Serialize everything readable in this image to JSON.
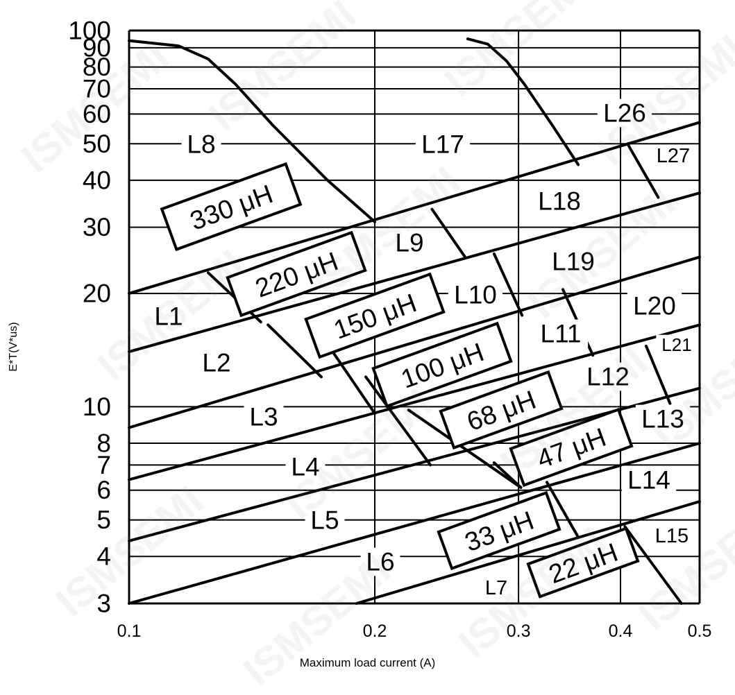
{
  "chart_data": {
    "type": "line",
    "title": "",
    "xlabel": "Maximum load current (A)",
    "ylabel": "E*T(V*us)",
    "x_scale": "log",
    "y_scale": "log",
    "xlim": [
      0.1,
      0.5
    ],
    "ylim": [
      3,
      100
    ],
    "x_ticks": [
      0.1,
      0.2,
      0.3,
      0.4,
      0.5
    ],
    "x_tick_labels": [
      "0.1",
      "0.2",
      "0.3",
      "0.4",
      "0.5"
    ],
    "y_ticks": [
      3,
      4,
      5,
      6,
      7,
      8,
      10,
      20,
      30,
      40,
      50,
      60,
      70,
      80,
      90,
      100
    ],
    "y_tick_labels": [
      "3",
      "4",
      "5",
      "6",
      "7",
      "8",
      "10",
      "20",
      "30",
      "40",
      "50",
      "60",
      "70",
      "80",
      "90",
      "100"
    ],
    "grid": true,
    "inductance_lines": [
      {
        "points": [
          [
            0.1,
            20
          ],
          [
            0.5,
            57
          ]
        ]
      },
      {
        "points": [
          [
            0.1,
            14
          ],
          [
            0.5,
            37
          ]
        ]
      },
      {
        "points": [
          [
            0.1,
            8.8
          ],
          [
            0.5,
            25
          ]
        ]
      },
      {
        "points": [
          [
            0.1,
            6.4
          ],
          [
            0.5,
            16.5
          ]
        ]
      },
      {
        "points": [
          [
            0.1,
            4.4
          ],
          [
            0.5,
            11.2
          ]
        ]
      },
      {
        "points": [
          [
            0.1,
            3.0
          ],
          [
            0.5,
            8.0
          ]
        ]
      },
      {
        "points": [
          [
            0.19,
            3.0
          ],
          [
            0.5,
            5.6
          ]
        ]
      }
    ],
    "boundary_curves": [
      {
        "points": [
          [
            0.1,
            94
          ],
          [
            0.115,
            91
          ],
          [
            0.125,
            84
          ],
          [
            0.135,
            72
          ],
          [
            0.15,
            56
          ],
          [
            0.175,
            40
          ],
          [
            0.2,
            31
          ]
        ]
      },
      {
        "points": [
          [
            0.26,
            95
          ],
          [
            0.275,
            92
          ],
          [
            0.29,
            83
          ],
          [
            0.305,
            72
          ],
          [
            0.33,
            56
          ],
          [
            0.355,
            44
          ]
        ]
      },
      {
        "points": [
          [
            0.408,
            50
          ],
          [
            0.445,
            36
          ]
        ]
      },
      {
        "points": [
          [
            0.235,
            33.5
          ],
          [
            0.258,
            25
          ]
        ]
      },
      {
        "points": [
          [
            0.28,
            25.5
          ],
          [
            0.303,
            17.5
          ]
        ]
      },
      {
        "points": [
          [
            0.34,
            20.5
          ],
          [
            0.37,
            13.7
          ]
        ]
      },
      {
        "points": [
          [
            0.43,
            14.5
          ],
          [
            0.46,
            10.2
          ]
        ]
      },
      {
        "points": [
          [
            0.125,
            22.7
          ],
          [
            0.145,
            16.8
          ]
        ]
      },
      {
        "points": [
          [
            0.148,
            16.5
          ],
          [
            0.172,
            12
          ]
        ]
      },
      {
        "points": [
          [
            0.172,
            15.5
          ],
          [
            0.2,
            9.6
          ]
        ]
      },
      {
        "points": [
          [
            0.195,
            12
          ],
          [
            0.234,
            7
          ]
        ]
      },
      {
        "points": [
          [
            0.22,
            9.8
          ],
          [
            0.302,
            6.1
          ]
        ]
      },
      {
        "points": [
          [
            0.28,
            7.1
          ],
          [
            0.302,
            6.1
          ]
        ]
      },
      {
        "points": [
          [
            0.325,
            6.3
          ],
          [
            0.355,
            4.5
          ]
        ]
      },
      {
        "points": [
          [
            0.405,
            4.8
          ],
          [
            0.475,
            3.0
          ]
        ]
      }
    ],
    "inductance_labels": [
      "330 μH",
      "220 μH",
      "150 μH",
      "100 μH",
      "68 μH",
      "47 μH",
      "33 μH",
      "22 μH"
    ],
    "region_labels": [
      "L1",
      "L2",
      "L3",
      "L4",
      "L5",
      "L6",
      "L7",
      "L8",
      "L9",
      "L10",
      "L11",
      "L12",
      "L13",
      "L14",
      "L15",
      "L17",
      "L18",
      "L19",
      "L20",
      "L21",
      "L26",
      "L27"
    ],
    "watermark": "ISMSEMI"
  }
}
